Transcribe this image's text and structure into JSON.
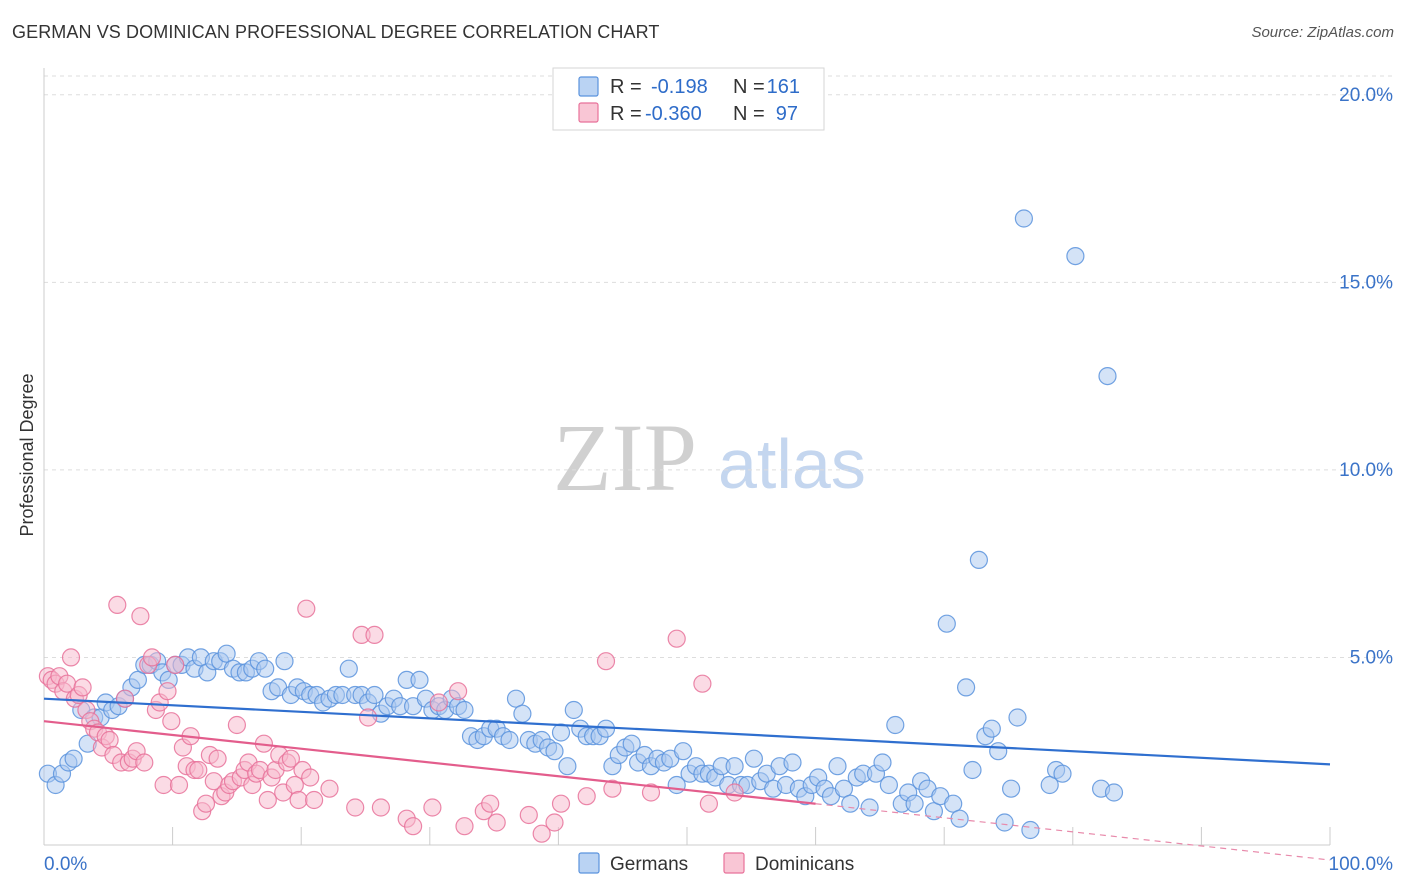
{
  "header": {
    "title": "GERMAN VS DOMINICAN PROFESSIONAL DEGREE CORRELATION CHART",
    "source": "Source: ZipAtlas.com"
  },
  "watermark": {
    "zip": "ZIP",
    "atlas": "atlas"
  },
  "legend": {
    "rows": [
      {
        "swatch_color": "#a9c8f0",
        "r_label": "R =",
        "r_value": "-0.198",
        "n_label": "N =",
        "n_value": "161"
      },
      {
        "swatch_color": "#f7b8cb",
        "r_label": "R =",
        "r_value": "-0.360",
        "n_label": "N =",
        "n_value": "97"
      }
    ]
  },
  "bottom_legend": {
    "items": [
      {
        "label": "Germans",
        "color": "#a9c8f0"
      },
      {
        "label": "Dominicans",
        "color": "#f7b8cb"
      }
    ]
  },
  "chart_data": {
    "type": "scatter",
    "title": "GERMAN VS DOMINICAN PROFESSIONAL DEGREE CORRELATION CHART",
    "xlabel": "",
    "ylabel": "Professional Degree",
    "xlim": [
      0,
      100
    ],
    "ylim": [
      0,
      20.5
    ],
    "x_tick_labels": [
      "0.0%",
      "100.0%"
    ],
    "y_ticks": [
      5,
      10,
      15,
      20
    ],
    "y_tick_labels": [
      "5.0%",
      "10.0%",
      "15.0%",
      "20.0%"
    ],
    "grid": true,
    "legend_position": "top-center",
    "series": [
      {
        "name": "Germans",
        "color": "#5b93dd",
        "fill": "#a9c8f0",
        "r": -0.198,
        "n": 161,
        "trend": {
          "x": [
            0,
            100
          ],
          "y": [
            3.9,
            2.15
          ]
        },
        "points": [
          [
            0.3,
            1.9
          ],
          [
            0.9,
            1.6
          ],
          [
            1.4,
            1.9
          ],
          [
            1.9,
            2.2
          ],
          [
            2.3,
            2.3
          ],
          [
            3.4,
            2.7
          ],
          [
            2.9,
            3.6
          ],
          [
            3.9,
            3.4
          ],
          [
            4.4,
            3.4
          ],
          [
            4.8,
            3.8
          ],
          [
            5.3,
            3.6
          ],
          [
            5.8,
            3.7
          ],
          [
            6.3,
            3.9
          ],
          [
            6.8,
            4.2
          ],
          [
            7.3,
            4.4
          ],
          [
            7.8,
            4.8
          ],
          [
            8.3,
            4.8
          ],
          [
            8.8,
            4.9
          ],
          [
            9.2,
            4.6
          ],
          [
            9.7,
            4.4
          ],
          [
            10.2,
            4.8
          ],
          [
            10.7,
            4.8
          ],
          [
            11.2,
            5.0
          ],
          [
            11.7,
            4.7
          ],
          [
            12.2,
            5.0
          ],
          [
            12.7,
            4.6
          ],
          [
            13.2,
            4.9
          ],
          [
            13.7,
            4.9
          ],
          [
            14.2,
            5.1
          ],
          [
            14.7,
            4.7
          ],
          [
            15.2,
            4.6
          ],
          [
            15.7,
            4.6
          ],
          [
            16.2,
            4.7
          ],
          [
            16.7,
            4.9
          ],
          [
            17.2,
            4.7
          ],
          [
            17.7,
            4.1
          ],
          [
            18.2,
            4.2
          ],
          [
            18.7,
            4.9
          ],
          [
            19.2,
            4.0
          ],
          [
            19.7,
            4.2
          ],
          [
            20.2,
            4.1
          ],
          [
            20.7,
            4.0
          ],
          [
            21.2,
            4.0
          ],
          [
            21.7,
            3.8
          ],
          [
            22.2,
            3.9
          ],
          [
            22.7,
            4.0
          ],
          [
            23.2,
            4.0
          ],
          [
            23.7,
            4.7
          ],
          [
            24.2,
            4.0
          ],
          [
            24.7,
            4.0
          ],
          [
            25.2,
            3.8
          ],
          [
            25.7,
            4.0
          ],
          [
            26.2,
            3.5
          ],
          [
            26.7,
            3.7
          ],
          [
            27.2,
            3.9
          ],
          [
            27.7,
            3.7
          ],
          [
            28.2,
            4.4
          ],
          [
            28.7,
            3.7
          ],
          [
            29.2,
            4.4
          ],
          [
            29.7,
            3.9
          ],
          [
            30.2,
            3.6
          ],
          [
            30.7,
            3.7
          ],
          [
            31.2,
            3.6
          ],
          [
            31.7,
            3.9
          ],
          [
            32.2,
            3.7
          ],
          [
            32.7,
            3.6
          ],
          [
            33.2,
            2.9
          ],
          [
            33.7,
            2.8
          ],
          [
            34.2,
            2.9
          ],
          [
            34.7,
            3.1
          ],
          [
            35.2,
            3.1
          ],
          [
            35.7,
            2.9
          ],
          [
            36.2,
            2.8
          ],
          [
            36.7,
            3.9
          ],
          [
            37.2,
            3.5
          ],
          [
            37.7,
            2.8
          ],
          [
            38.2,
            2.7
          ],
          [
            38.7,
            2.8
          ],
          [
            39.2,
            2.6
          ],
          [
            39.7,
            2.5
          ],
          [
            40.2,
            3.0
          ],
          [
            40.7,
            2.1
          ],
          [
            41.2,
            3.6
          ],
          [
            41.7,
            3.1
          ],
          [
            42.2,
            2.9
          ],
          [
            42.7,
            2.9
          ],
          [
            43.2,
            2.9
          ],
          [
            43.7,
            3.1
          ],
          [
            44.2,
            2.1
          ],
          [
            44.7,
            2.4
          ],
          [
            45.2,
            2.6
          ],
          [
            45.7,
            2.7
          ],
          [
            46.2,
            2.2
          ],
          [
            46.7,
            2.4
          ],
          [
            47.2,
            2.1
          ],
          [
            47.7,
            2.3
          ],
          [
            48.2,
            2.2
          ],
          [
            48.7,
            2.3
          ],
          [
            49.2,
            1.6
          ],
          [
            49.7,
            2.5
          ],
          [
            50.2,
            1.9
          ],
          [
            50.7,
            2.1
          ],
          [
            51.2,
            1.9
          ],
          [
            51.7,
            1.9
          ],
          [
            52.2,
            1.8
          ],
          [
            52.7,
            2.1
          ],
          [
            53.2,
            1.6
          ],
          [
            53.7,
            2.1
          ],
          [
            54.2,
            1.6
          ],
          [
            54.7,
            1.6
          ],
          [
            55.2,
            2.3
          ],
          [
            55.7,
            1.7
          ],
          [
            56.2,
            1.9
          ],
          [
            56.7,
            1.5
          ],
          [
            57.2,
            2.1
          ],
          [
            57.7,
            1.6
          ],
          [
            58.2,
            2.2
          ],
          [
            58.7,
            1.5
          ],
          [
            59.2,
            1.3
          ],
          [
            59.7,
            1.6
          ],
          [
            60.2,
            1.8
          ],
          [
            60.7,
            1.5
          ],
          [
            61.2,
            1.3
          ],
          [
            61.7,
            2.1
          ],
          [
            62.2,
            1.5
          ],
          [
            62.7,
            1.1
          ],
          [
            63.2,
            1.8
          ],
          [
            63.7,
            1.9
          ],
          [
            64.2,
            1.0
          ],
          [
            64.7,
            1.9
          ],
          [
            65.2,
            2.2
          ],
          [
            65.7,
            1.6
          ],
          [
            66.2,
            3.2
          ],
          [
            66.7,
            1.1
          ],
          [
            67.2,
            1.4
          ],
          [
            67.7,
            1.1
          ],
          [
            68.2,
            1.7
          ],
          [
            68.7,
            1.5
          ],
          [
            69.2,
            0.9
          ],
          [
            69.7,
            1.3
          ],
          [
            70.2,
            5.9
          ],
          [
            70.7,
            1.1
          ],
          [
            71.2,
            0.7
          ],
          [
            71.7,
            4.2
          ],
          [
            72.2,
            2.0
          ],
          [
            72.7,
            7.6
          ],
          [
            73.2,
            2.9
          ],
          [
            73.7,
            3.1
          ],
          [
            74.2,
            2.5
          ],
          [
            74.7,
            0.6
          ],
          [
            75.2,
            1.5
          ],
          [
            75.7,
            3.4
          ],
          [
            76.2,
            16.7
          ],
          [
            76.7,
            0.4
          ],
          [
            78.2,
            1.6
          ],
          [
            78.7,
            2.0
          ],
          [
            79.2,
            1.9
          ],
          [
            80.2,
            15.7
          ],
          [
            82.2,
            1.5
          ],
          [
            82.7,
            12.5
          ],
          [
            83.2,
            1.4
          ]
        ]
      },
      {
        "name": "Dominicans",
        "color": "#e8729a",
        "fill": "#f7b8cb",
        "r": -0.36,
        "n": 97,
        "trend": {
          "x": [
            0,
            60
          ],
          "y": [
            3.3,
            1.1
          ]
        },
        "trend_extension": {
          "x": [
            60,
            100
          ],
          "y": [
            1.1,
            -0.4
          ]
        },
        "points": [
          [
            0.3,
            4.5
          ],
          [
            0.6,
            4.4
          ],
          [
            0.9,
            4.3
          ],
          [
            1.2,
            4.5
          ],
          [
            1.5,
            4.1
          ],
          [
            1.8,
            4.3
          ],
          [
            2.1,
            5.0
          ],
          [
            2.4,
            3.9
          ],
          [
            2.7,
            4.0
          ],
          [
            3.0,
            4.2
          ],
          [
            3.3,
            3.6
          ],
          [
            3.6,
            3.3
          ],
          [
            3.9,
            3.1
          ],
          [
            4.2,
            3.0
          ],
          [
            4.5,
            2.6
          ],
          [
            4.8,
            2.9
          ],
          [
            5.1,
            2.8
          ],
          [
            5.4,
            2.4
          ],
          [
            5.7,
            6.4
          ],
          [
            6.0,
            2.2
          ],
          [
            6.3,
            3.9
          ],
          [
            6.6,
            2.2
          ],
          [
            6.9,
            2.3
          ],
          [
            7.2,
            2.5
          ],
          [
            7.5,
            6.1
          ],
          [
            7.8,
            2.2
          ],
          [
            8.1,
            4.8
          ],
          [
            8.4,
            5.0
          ],
          [
            8.7,
            3.6
          ],
          [
            9.0,
            3.8
          ],
          [
            9.3,
            1.6
          ],
          [
            9.6,
            4.1
          ],
          [
            9.9,
            3.3
          ],
          [
            10.2,
            4.8
          ],
          [
            10.5,
            1.6
          ],
          [
            10.8,
            2.6
          ],
          [
            11.1,
            2.1
          ],
          [
            11.4,
            2.9
          ],
          [
            11.7,
            2.0
          ],
          [
            12.0,
            2.0
          ],
          [
            12.3,
            0.9
          ],
          [
            12.6,
            1.1
          ],
          [
            12.9,
            2.4
          ],
          [
            13.2,
            1.7
          ],
          [
            13.5,
            2.3
          ],
          [
            13.8,
            1.3
          ],
          [
            14.1,
            1.4
          ],
          [
            14.4,
            1.6
          ],
          [
            14.7,
            1.7
          ],
          [
            15.0,
            3.2
          ],
          [
            15.3,
            1.8
          ],
          [
            15.6,
            2.0
          ],
          [
            15.9,
            2.2
          ],
          [
            16.2,
            1.6
          ],
          [
            16.5,
            1.9
          ],
          [
            16.8,
            2.0
          ],
          [
            17.1,
            2.7
          ],
          [
            17.4,
            1.2
          ],
          [
            17.7,
            1.8
          ],
          [
            18.0,
            2.0
          ],
          [
            18.3,
            2.4
          ],
          [
            18.6,
            1.4
          ],
          [
            18.9,
            2.2
          ],
          [
            19.2,
            2.3
          ],
          [
            19.5,
            1.6
          ],
          [
            19.8,
            1.2
          ],
          [
            20.1,
            2.0
          ],
          [
            20.4,
            6.3
          ],
          [
            20.7,
            1.8
          ],
          [
            21.0,
            1.2
          ],
          [
            22.2,
            1.5
          ],
          [
            24.2,
            1.0
          ],
          [
            24.7,
            5.6
          ],
          [
            25.2,
            3.4
          ],
          [
            25.7,
            5.6
          ],
          [
            26.2,
            1.0
          ],
          [
            28.2,
            0.7
          ],
          [
            28.7,
            0.5
          ],
          [
            30.2,
            1.0
          ],
          [
            30.7,
            3.8
          ],
          [
            32.2,
            4.1
          ],
          [
            32.7,
            0.5
          ],
          [
            34.2,
            0.9
          ],
          [
            34.7,
            1.1
          ],
          [
            35.2,
            0.6
          ],
          [
            37.7,
            0.8
          ],
          [
            38.7,
            0.3
          ],
          [
            39.7,
            0.6
          ],
          [
            40.2,
            1.1
          ],
          [
            42.2,
            1.3
          ],
          [
            43.7,
            4.9
          ],
          [
            44.2,
            1.5
          ],
          [
            47.2,
            1.4
          ],
          [
            49.2,
            5.5
          ],
          [
            51.2,
            4.3
          ],
          [
            51.7,
            1.1
          ],
          [
            53.7,
            1.4
          ]
        ]
      }
    ]
  }
}
